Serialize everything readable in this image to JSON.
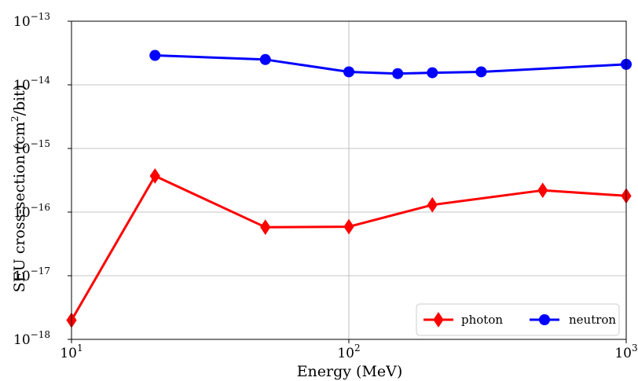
{
  "chart_data": {
    "type": "line",
    "xlabel": "Energy (MeV)",
    "ylabel_main": "SEU cross-section (cm",
    "ylabel_sup": "2",
    "ylabel_tail": "/bit)",
    "x_scale": "log",
    "y_scale": "log",
    "xlim": [
      10,
      1000
    ],
    "ylim": [
      1e-18,
      1e-13
    ],
    "grid": true,
    "legend_position": "bottom-right",
    "x_ticks": [
      {
        "value": 10,
        "base": "10",
        "exp": "1"
      },
      {
        "value": 100,
        "base": "10",
        "exp": "2"
      },
      {
        "value": 1000,
        "base": "10",
        "exp": "3"
      }
    ],
    "y_ticks": [
      {
        "value": 1e-18,
        "base": "10",
        "exp": "−18"
      },
      {
        "value": 1e-17,
        "base": "10",
        "exp": "−17"
      },
      {
        "value": 1e-16,
        "base": "10",
        "exp": "−16"
      },
      {
        "value": 1e-15,
        "base": "10",
        "exp": "−15"
      },
      {
        "value": 1e-14,
        "base": "10",
        "exp": "−14"
      },
      {
        "value": 1e-13,
        "base": "10",
        "exp": "−13"
      }
    ],
    "series": [
      {
        "name": "photon",
        "color": "#ff0000",
        "marker": "diamond",
        "x": [
          10,
          20,
          50,
          100,
          200,
          500,
          1000
        ],
        "y": [
          2e-18,
          3.7e-16,
          5.8e-17,
          5.9e-17,
          1.3e-16,
          2.2e-16,
          1.8e-16
        ]
      },
      {
        "name": "neutron",
        "color": "#0000ff",
        "marker": "circle",
        "x": [
          20,
          50,
          100,
          150,
          200,
          300,
          1000
        ],
        "y": [
          2.9e-14,
          2.5e-14,
          1.6e-14,
          1.5e-14,
          1.55e-14,
          1.6e-14,
          2.1e-14
        ]
      }
    ]
  }
}
